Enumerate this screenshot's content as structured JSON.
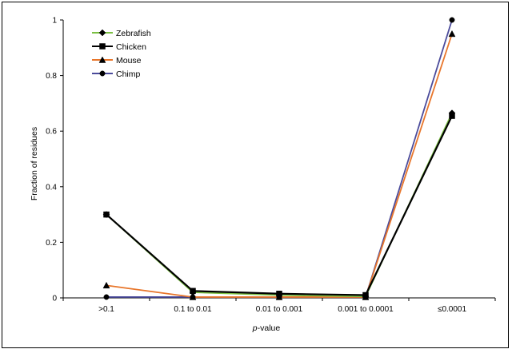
{
  "chart_data": {
    "type": "line",
    "title": "",
    "xlabel_italic": "p",
    "xlabel_rest": "-value",
    "ylabel": "Fraction of residues",
    "categories": [
      ">0.1",
      "0.1 to 0.01",
      "0.01 to 0.001",
      "0.001 to 0.0001",
      "≤0.0001"
    ],
    "ylim": [
      0,
      1
    ],
    "yticks": [
      0,
      0.2,
      0.4,
      0.6,
      0.8,
      1
    ],
    "ytick_labels": [
      "0",
      "0.2",
      "0.4",
      "0.6",
      "0.8",
      "1"
    ],
    "grid": false,
    "legend_position": "top-left",
    "series": [
      {
        "name": "Zebrafish",
        "marker": "diamond",
        "color": "#7bc043",
        "marker_color": "#000000",
        "values": [
          0.3,
          0.02,
          0.01,
          0.005,
          0.665
        ]
      },
      {
        "name": "Chicken",
        "marker": "square",
        "color": "#000000",
        "marker_color": "#000000",
        "values": [
          0.3,
          0.025,
          0.015,
          0.01,
          0.655
        ]
      },
      {
        "name": "Mouse",
        "marker": "triangle",
        "color": "#e8762b",
        "marker_color": "#000000",
        "values": [
          0.045,
          0.003,
          0.003,
          0.003,
          0.95
        ]
      },
      {
        "name": "Chimp",
        "marker": "circle",
        "color": "#4b4b9b",
        "marker_color": "#000000",
        "values": [
          0.003,
          0.003,
          0.003,
          0.003,
          1.0
        ]
      }
    ]
  }
}
